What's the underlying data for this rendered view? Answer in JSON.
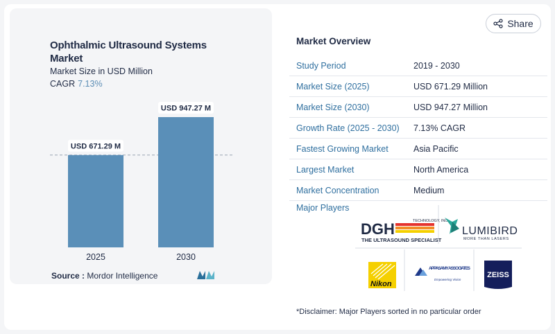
{
  "chart_title": "Ophthalmic Ultrasound Systems Market",
  "chart_subtitle": "Market Size in USD Million",
  "cagr_label": "CAGR",
  "cagr_value": "7.13%",
  "source_label": "Source :",
  "source_value": "Mordor Intelligence",
  "share_label": "Share",
  "overview_title": "Market Overview",
  "overview_rows": [
    {
      "key": "Study Period",
      "value": "2019 - 2030"
    },
    {
      "key": "Market Size (2025)",
      "value": "USD 671.29 Million"
    },
    {
      "key": "Market Size (2030)",
      "value": "USD 947.27 Million"
    },
    {
      "key": "Growth Rate (2025 - 2030)",
      "value": "7.13% CAGR"
    },
    {
      "key": "Fastest Growing Market",
      "value": "Asia Pacific"
    },
    {
      "key": "Largest Market",
      "value": "North America"
    },
    {
      "key": "Market Concentration",
      "value": "Medium"
    }
  ],
  "major_players_label": "Major Players",
  "players": [
    {
      "name": "DGH Technology",
      "logo_text": "DGH",
      "tagline": "THE ULTRASOUND SPECIALIST",
      "small": "TECHNOLOGY, INC."
    },
    {
      "name": "Lumibird",
      "logo_text": "LUMIBIRD",
      "tagline": "MORE THAN LASERS"
    },
    {
      "name": "Nikon",
      "logo_text": "Nikon"
    },
    {
      "name": "Appasamy Associates",
      "logo_text": "APPASAMY ASSOCIATES",
      "tagline": "Empowering Vision"
    },
    {
      "name": "Zeiss",
      "logo_text": "ZEISS"
    }
  ],
  "disclaimer": "*Disclaimer: Major Players sorted in no particular order",
  "colors": {
    "bar": "#5a8fb8",
    "accent": "#2f6f9f",
    "nikon_yellow": "#f5d000"
  },
  "chart_data": {
    "type": "bar",
    "categories": [
      "2025",
      "2030"
    ],
    "values": [
      671.29,
      947.27
    ],
    "data_labels": [
      "USD 671.29 M",
      "USD 947.27 M"
    ],
    "title": "Ophthalmic Ultrasound Systems Market",
    "subtitle": "Market Size in USD Million",
    "reference_line": 671.29,
    "grid": false,
    "legend": "none"
  }
}
